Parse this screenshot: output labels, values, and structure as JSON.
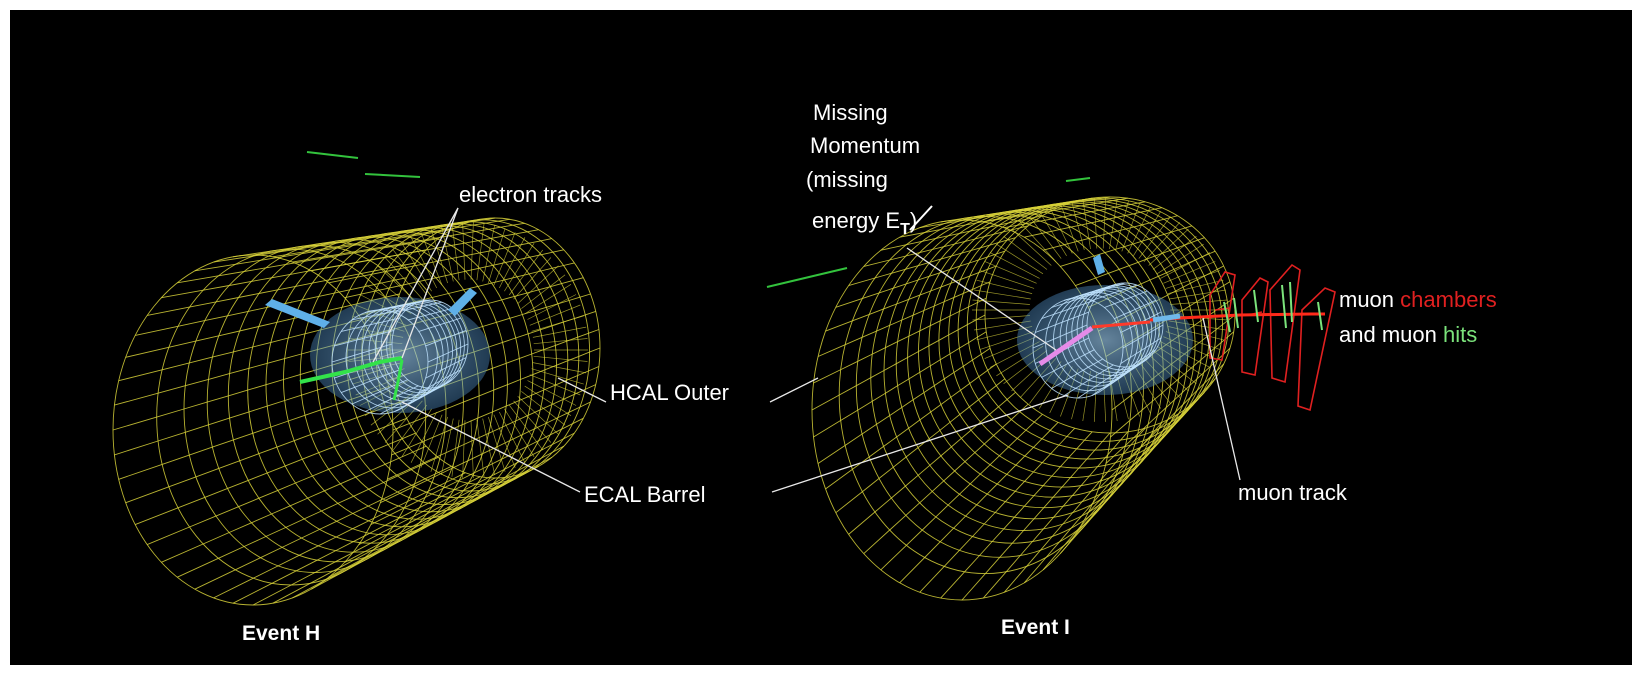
{
  "events": [
    {
      "label": "Event H"
    },
    {
      "label": "Event I"
    }
  ],
  "labels": {
    "electron_tracks": "electron tracks",
    "hcal_outer": "HCAL Outer",
    "ecal_barrel": "ECAL Barrel",
    "missing_line1": "Missing",
    "missing_line2": "Momentum",
    "missing_line3": "(missing",
    "missing_line4_prefix": "energy ",
    "missing_et_symbol": "E",
    "missing_et_sub": "T",
    "missing_line4_suffix": ")",
    "muon_line1_prefix": "muon ",
    "muon_chambers": "chambers",
    "muon_line2_prefix": "and muon ",
    "muon_hits": "hits",
    "muon_track": "muon track"
  },
  "colors": {
    "background": "#000000",
    "detector_mesh": "#d8d23a",
    "ecal": "#7fb7e6",
    "electron_track": "#33e24a",
    "muon_chamber": "#e02020",
    "muon_hit": "#7be37b",
    "missing_et_track": "#e58be8",
    "label_text": "#ffffff"
  }
}
